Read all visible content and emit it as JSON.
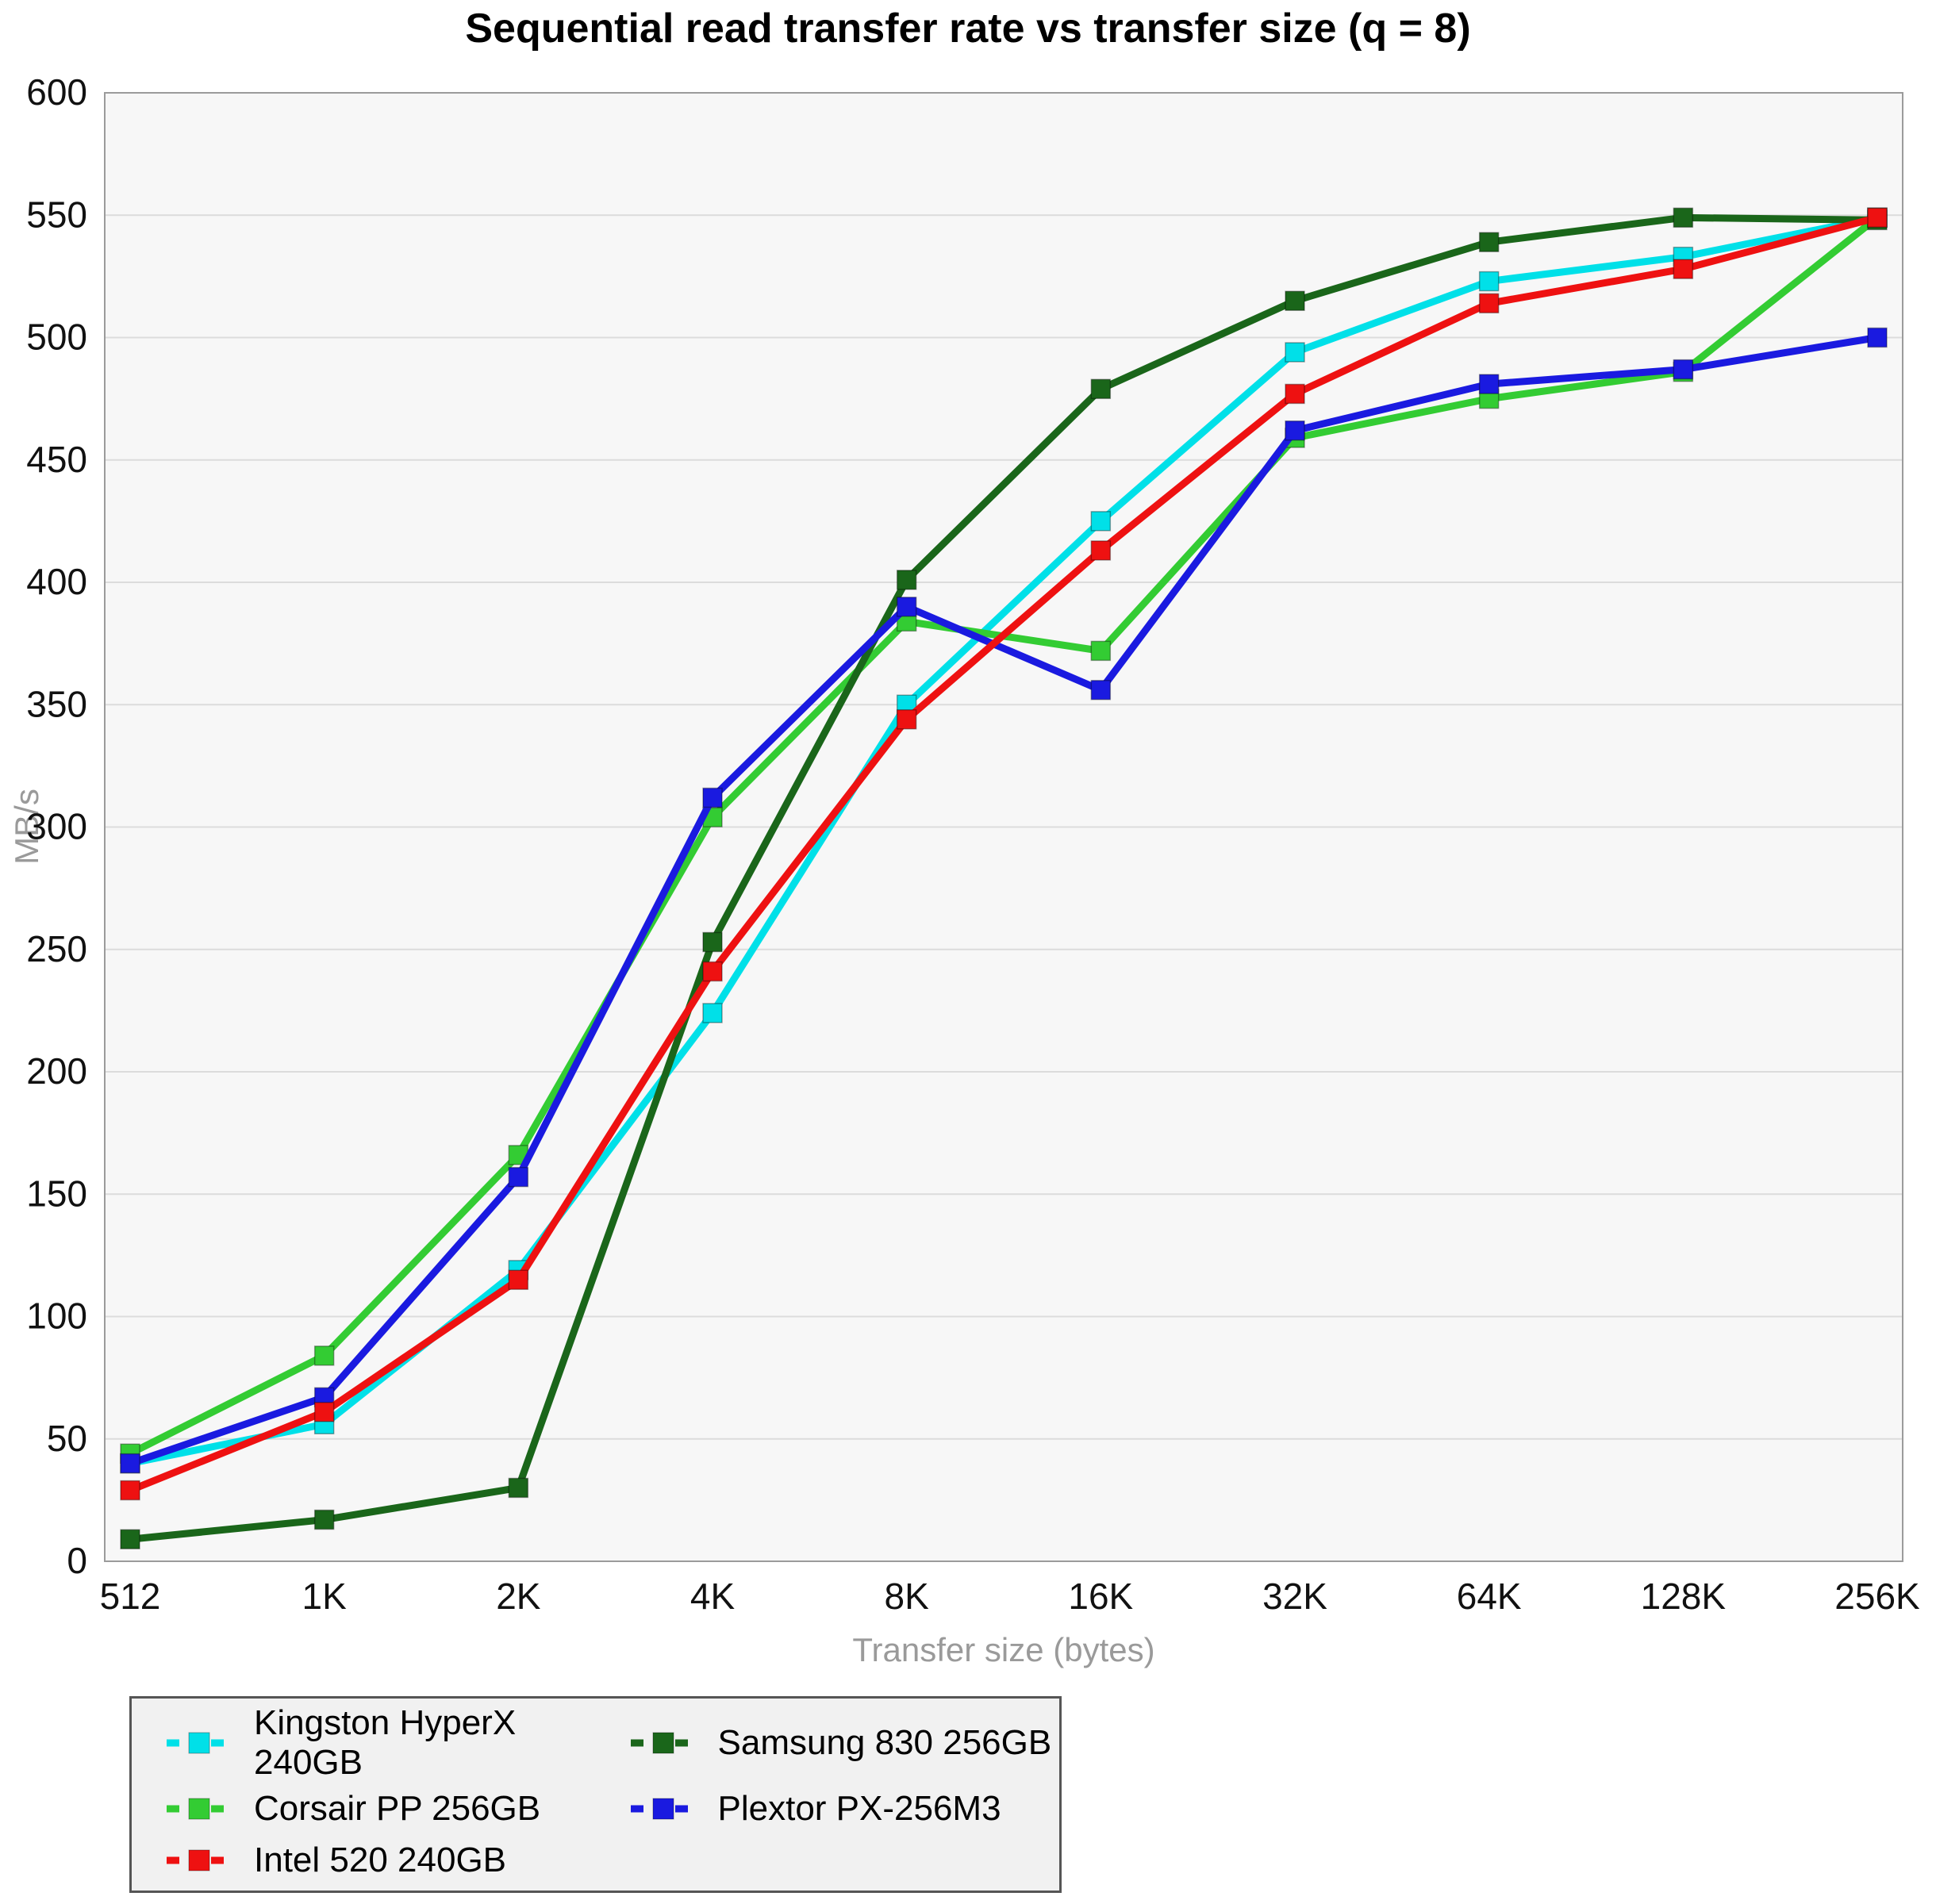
{
  "chart_data": {
    "type": "line",
    "title": "Sequential read transfer rate vs transfer size (q = 8)",
    "xlabel": "Transfer size (bytes)",
    "ylabel": "MB/s",
    "categories": [
      "512",
      "1K",
      "2K",
      "4K",
      "8K",
      "16K",
      "32K",
      "64K",
      "128K",
      "256K"
    ],
    "ylim": [
      0,
      600
    ],
    "ytick_step": 50,
    "grid": "horizontal-only",
    "legend_position": "bottom-left",
    "plot_bg": "#f7f7f7",
    "grid_color": "#dcdcdc",
    "series": [
      {
        "name": "Kingston HyperX 240GB",
        "color": "#00e0e8",
        "values": [
          40,
          56,
          119,
          224,
          350,
          425,
          494,
          523,
          533,
          549
        ]
      },
      {
        "name": "Corsair PP 256GB",
        "color": "#33cc33",
        "values": [
          44,
          84,
          166,
          304,
          384,
          372,
          459,
          475,
          486,
          549
        ]
      },
      {
        "name": "Intel 520 240GB",
        "color": "#ee1111",
        "values": [
          29,
          61,
          115,
          241,
          344,
          413,
          477,
          514,
          528,
          549
        ]
      },
      {
        "name": "Samsung 830 256GB",
        "color": "#1a661a",
        "values": [
          9,
          17,
          30,
          253,
          401,
          479,
          515,
          539,
          549,
          548
        ]
      },
      {
        "name": "Plextor PX-256M3",
        "color": "#1a1ae0",
        "values": [
          40,
          67,
          157,
          312,
          390,
          356,
          462,
          481,
          487,
          500
        ]
      }
    ],
    "draw_order": [
      0,
      1,
      3,
      4,
      2
    ]
  }
}
